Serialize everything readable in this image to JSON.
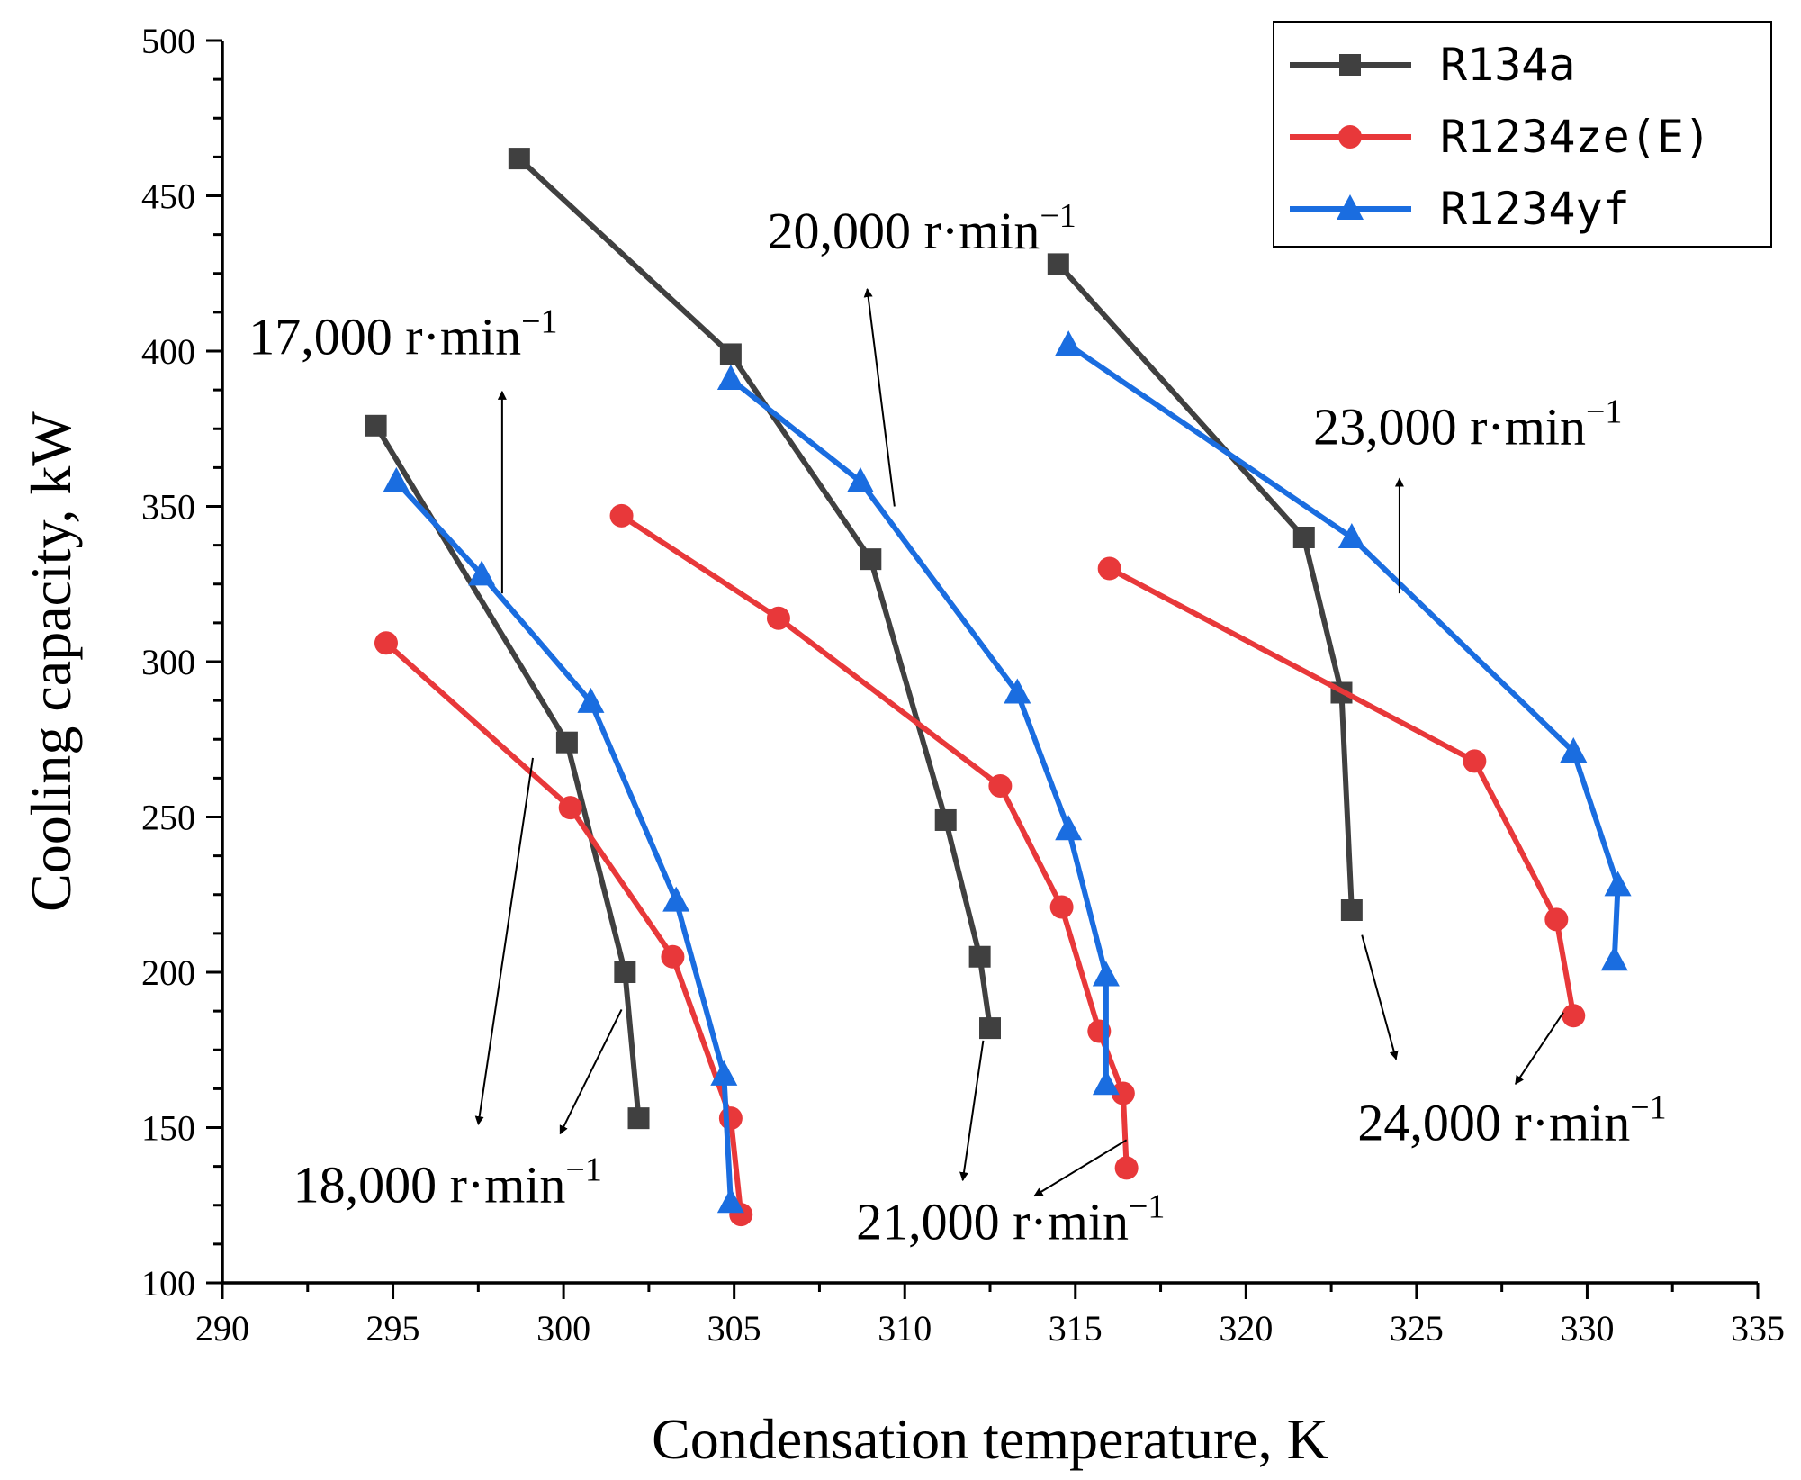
{
  "chart_data": {
    "type": "line",
    "xlabel": "Condensation temperature, K",
    "ylabel": "Cooling capacity, kW",
    "xlim": [
      290,
      335
    ],
    "ylim": [
      100,
      500
    ],
    "xticks": [
      290,
      295,
      300,
      305,
      310,
      315,
      320,
      325,
      330,
      335
    ],
    "yticks": [
      100,
      150,
      200,
      250,
      300,
      350,
      400,
      450,
      500
    ],
    "legend_position": "top-right",
    "series": [
      {
        "name": "R134a",
        "color": "#404040",
        "marker": "square",
        "groups": [
          [
            [
              294.5,
              376
            ],
            [
              300.1,
              274
            ],
            [
              301.8,
              200
            ],
            [
              302.2,
              153
            ]
          ],
          [
            [
              298.7,
              462
            ],
            [
              304.9,
              399
            ],
            [
              309.0,
              333
            ],
            [
              311.2,
              249
            ],
            [
              312.2,
              205
            ],
            [
              312.5,
              182
            ]
          ],
          [
            [
              314.5,
              428
            ],
            [
              321.7,
              340
            ],
            [
              322.8,
              290
            ],
            [
              323.1,
              220
            ]
          ]
        ]
      },
      {
        "name": "R1234ze(E)",
        "color": "#e8383a",
        "marker": "circle",
        "groups": [
          [
            [
              294.8,
              306
            ],
            [
              300.2,
              253
            ],
            [
              303.2,
              205
            ],
            [
              304.9,
              153
            ],
            [
              305.2,
              122
            ]
          ],
          [
            [
              301.7,
              347
            ],
            [
              306.3,
              314
            ],
            [
              312.8,
              260
            ],
            [
              314.6,
              221
            ],
            [
              315.7,
              181
            ],
            [
              316.4,
              161
            ],
            [
              316.5,
              137
            ]
          ],
          [
            [
              316.0,
              330
            ],
            [
              326.7,
              268
            ],
            [
              329.1,
              217
            ],
            [
              329.6,
              186
            ]
          ]
        ]
      },
      {
        "name": "R1234yf",
        "color": "#1a6de0",
        "marker": "triangle",
        "groups": [
          [
            [
              295.1,
              358
            ],
            [
              297.6,
              328
            ],
            [
              300.8,
              287
            ],
            [
              303.3,
              223
            ],
            [
              304.7,
              167
            ],
            [
              304.9,
              126
            ]
          ],
          [
            [
              304.9,
              391
            ],
            [
              308.7,
              358
            ],
            [
              313.3,
              290
            ],
            [
              314.8,
              246
            ],
            [
              315.9,
              199
            ],
            [
              315.9,
              164
            ]
          ],
          [
            [
              314.8,
              402
            ],
            [
              323.1,
              340
            ],
            [
              329.6,
              271
            ],
            [
              330.9,
              228
            ],
            [
              330.8,
              204
            ]
          ]
        ]
      }
    ],
    "annotations": [
      {
        "text": "17,000 r·min",
        "sup": "−1",
        "x": 295.3,
        "y": 399
      },
      {
        "text": "18,000 r·min",
        "sup": "−1",
        "x": 296.6,
        "y": 126
      },
      {
        "text": "20,000 r·min",
        "sup": "−1",
        "x": 310.5,
        "y": 433
      },
      {
        "text": "21,000 r·min",
        "sup": "−1",
        "x": 313.1,
        "y": 114
      },
      {
        "text": "23,000 r·min",
        "sup": "−1",
        "x": 326.5,
        "y": 370
      },
      {
        "text": "24,000 r·min",
        "sup": "−1",
        "x": 327.8,
        "y": 146
      }
    ],
    "arrows": [
      {
        "from": [
          298.2,
          322
        ],
        "to": [
          298.2,
          387
        ]
      },
      {
        "from": [
          299.1,
          269
        ],
        "to": [
          297.5,
          151
        ]
      },
      {
        "from": [
          301.7,
          188
        ],
        "to": [
          299.9,
          148
        ]
      },
      {
        "from": [
          309.7,
          350
        ],
        "to": [
          308.9,
          420
        ]
      },
      {
        "from": [
          312.3,
          178
        ],
        "to": [
          311.7,
          133
        ]
      },
      {
        "from": [
          316.5,
          146
        ],
        "to": [
          313.8,
          128
        ]
      },
      {
        "from": [
          324.5,
          322
        ],
        "to": [
          324.5,
          359
        ]
      },
      {
        "from": [
          323.4,
          212
        ],
        "to": [
          324.4,
          172
        ]
      },
      {
        "from": [
          329.3,
          187
        ],
        "to": [
          327.9,
          164
        ]
      }
    ]
  }
}
